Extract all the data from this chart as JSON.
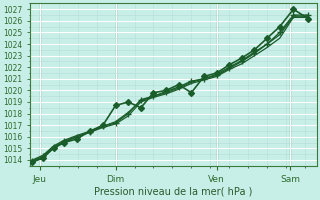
{
  "title": "",
  "xlabel": "Pression niveau de la mer( hPa )",
  "ylabel": "",
  "bg_color": "#c8eee8",
  "grid_major_color": "#ffffff",
  "grid_minor_color": "#b8ddd8",
  "line_color": "#1a5c2a",
  "axis_color": "#3a7a3a",
  "tick_label_color": "#2d6b2d",
  "xlabel_color": "#2d5a2d",
  "ylim": [
    1013.5,
    1027.5
  ],
  "yticks": [
    1014,
    1015,
    1016,
    1017,
    1018,
    1019,
    1020,
    1021,
    1022,
    1023,
    1024,
    1025,
    1026,
    1027
  ],
  "xlim": [
    -2,
    270
  ],
  "xtick_positions": [
    7,
    79,
    175,
    245
  ],
  "xtick_labels": [
    "Jeu",
    "Dim",
    "Ven",
    "Sam"
  ],
  "vline_positions": [
    7,
    79,
    175,
    245
  ],
  "series": [
    {
      "name": "diamond_line",
      "x": [
        0,
        10,
        20,
        30,
        42,
        55,
        67,
        79,
        91,
        103,
        115,
        127,
        139,
        151,
        163,
        175,
        187,
        199,
        211,
        223,
        235,
        248,
        262
      ],
      "y": [
        1013.8,
        1014.2,
        1015.0,
        1015.5,
        1015.8,
        1016.5,
        1017.0,
        1018.7,
        1019.0,
        1018.5,
        1019.8,
        1020.0,
        1020.5,
        1019.8,
        1021.2,
        1021.5,
        1022.2,
        1022.8,
        1023.5,
        1024.5,
        1025.5,
        1027.0,
        1026.2
      ],
      "marker": "D",
      "markersize": 3,
      "linewidth": 1.2,
      "zorder": 5
    },
    {
      "name": "cross_line",
      "x": [
        0,
        10,
        20,
        30,
        42,
        55,
        67,
        79,
        91,
        103,
        115,
        127,
        139,
        151,
        163,
        175,
        187,
        199,
        211,
        223,
        235,
        248,
        262
      ],
      "y": [
        1013.9,
        1014.3,
        1015.1,
        1015.6,
        1016.0,
        1016.4,
        1016.9,
        1017.2,
        1018.0,
        1019.2,
        1019.5,
        1019.9,
        1020.3,
        1020.8,
        1021.0,
        1021.3,
        1021.9,
        1022.5,
        1023.2,
        1024.0,
        1025.0,
        1026.5,
        1026.5
      ],
      "marker": "+",
      "markersize": 4,
      "linewidth": 1.0,
      "zorder": 4
    },
    {
      "name": "plain_line1",
      "x": [
        0,
        10,
        20,
        30,
        42,
        55,
        67,
        79,
        91,
        103,
        115,
        127,
        139,
        151,
        163,
        175,
        187,
        199,
        211,
        223,
        235,
        248,
        262
      ],
      "y": [
        1013.9,
        1014.1,
        1015.1,
        1015.5,
        1016.0,
        1016.4,
        1016.8,
        1017.1,
        1017.8,
        1019.0,
        1019.4,
        1019.7,
        1020.1,
        1020.6,
        1020.9,
        1021.2,
        1021.8,
        1022.3,
        1023.0,
        1023.7,
        1024.5,
        1026.3,
        1026.3
      ],
      "marker": null,
      "markersize": 0,
      "linewidth": 0.9,
      "zorder": 3
    },
    {
      "name": "plain_line2",
      "x": [
        0,
        10,
        20,
        30,
        42,
        55,
        67,
        79,
        91,
        103,
        115,
        127,
        139,
        151,
        163,
        175,
        187,
        199,
        211,
        223,
        235,
        248,
        262
      ],
      "y": [
        1014.0,
        1014.4,
        1015.2,
        1015.7,
        1016.1,
        1016.5,
        1016.9,
        1017.3,
        1018.1,
        1019.1,
        1019.5,
        1019.8,
        1020.2,
        1020.7,
        1021.0,
        1021.4,
        1022.0,
        1022.6,
        1023.3,
        1024.0,
        1024.8,
        1026.4,
        1026.4
      ],
      "marker": null,
      "markersize": 0,
      "linewidth": 0.9,
      "zorder": 2
    }
  ]
}
